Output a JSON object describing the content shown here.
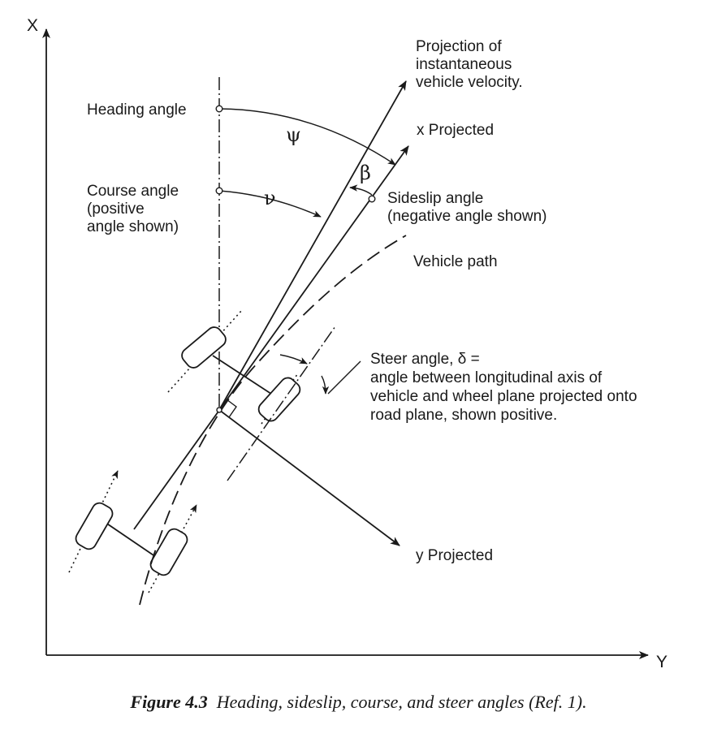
{
  "axes": {
    "x_label": "X",
    "y_label": "Y"
  },
  "labels": {
    "velocity_line1": "Projection of",
    "velocity_line2": "instantaneous",
    "velocity_line3": "vehicle velocity.",
    "x_projected": "x Projected",
    "heading_angle": "Heading angle",
    "course_line1": "Course angle",
    "course_line2": "(positive",
    "course_line3": "angle shown)",
    "sideslip_line1": "Sideslip angle",
    "sideslip_line2": "(negative angle shown)",
    "vehicle_path": "Vehicle path",
    "steer_line1": "Steer angle, δ =",
    "steer_line2": "angle between longitudinal axis of",
    "steer_line3": "vehicle and wheel plane projected onto",
    "steer_line4": "road plane, shown positive.",
    "y_projected": "y Projected"
  },
  "symbols": {
    "psi": "ψ",
    "nu": "ν",
    "beta": "β"
  },
  "caption": {
    "figure_number": "Figure 4.3",
    "text": "Heading, sideslip, course, and steer angles (Ref. 1)."
  }
}
